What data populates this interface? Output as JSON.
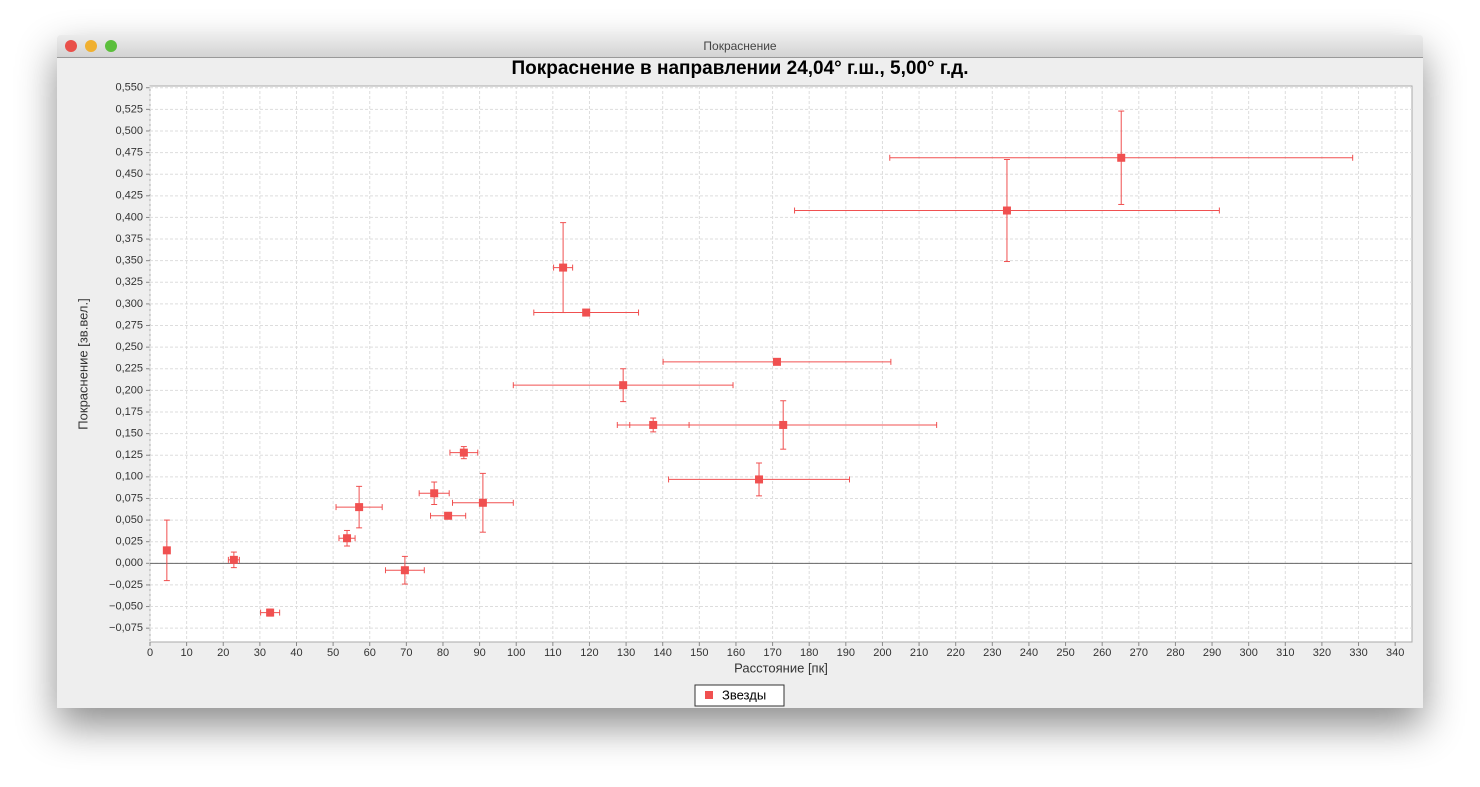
{
  "window_title": "Покраснение",
  "chart_data": {
    "type": "scatter",
    "title": "Покраснение в направлении 24,04° г.ш., 5,00° г.д.",
    "x_label": "Расстояние [пк]",
    "y_label": "Покраснение [зв.вел.]",
    "xlim": [
      0,
      344.6
    ],
    "ylim": [
      -0.091,
      0.552
    ],
    "grid": true,
    "xticks": [
      0,
      10,
      20,
      30,
      40,
      50,
      60,
      70,
      80,
      90,
      100,
      110,
      120,
      130,
      140,
      150,
      160,
      170,
      180,
      190,
      200,
      210,
      220,
      230,
      240,
      250,
      260,
      270,
      280,
      290,
      300,
      310,
      320,
      330,
      340
    ],
    "yticks": [
      {
        "value": -0.075,
        "label": "−0,075"
      },
      {
        "value": -0.05,
        "label": "−0,050"
      },
      {
        "value": -0.025,
        "label": "−0,025"
      },
      {
        "value": 0,
        "label": "0,000"
      },
      {
        "value": 0.025,
        "label": "0,025"
      },
      {
        "value": 0.05,
        "label": "0,050"
      },
      {
        "value": 0.075,
        "label": "0,075"
      },
      {
        "value": 0.1,
        "label": "0,100"
      },
      {
        "value": 0.125,
        "label": "0,125"
      },
      {
        "value": 0.15,
        "label": "0,150"
      },
      {
        "value": 0.175,
        "label": "0,175"
      },
      {
        "value": 0.2,
        "label": "0,200"
      },
      {
        "value": 0.225,
        "label": "0,225"
      },
      {
        "value": 0.25,
        "label": "0,250"
      },
      {
        "value": 0.275,
        "label": "0,275"
      },
      {
        "value": 0.3,
        "label": "0,300"
      },
      {
        "value": 0.325,
        "label": "0,325"
      },
      {
        "value": 0.35,
        "label": "0,350"
      },
      {
        "value": 0.375,
        "label": "0,375"
      },
      {
        "value": 0.4,
        "label": "0,400"
      },
      {
        "value": 0.425,
        "label": "0,425"
      },
      {
        "value": 0.45,
        "label": "0,450"
      },
      {
        "value": 0.475,
        "label": "0,475"
      },
      {
        "value": 0.5,
        "label": "0,500"
      },
      {
        "value": 0.525,
        "label": "0,525"
      },
      {
        "value": 0.55,
        "label": "0,550"
      }
    ],
    "series": [
      {
        "name": "Звезды",
        "color": "#f05050",
        "x": [
          4.6,
          22.9,
          32.8,
          53.8,
          57.1,
          69.6,
          77.6,
          81.4,
          85.7,
          90.9,
          112.8,
          119.1,
          129.2,
          137.4,
          166.3,
          171.2,
          172.9,
          234.0,
          265.2
        ],
        "values": [
          0.015,
          0.004,
          -0.057,
          0.029,
          0.065,
          -0.008,
          0.081,
          0.055,
          0.128,
          0.07,
          0.342,
          0.29,
          0.206,
          0.16,
          0.097,
          0.233,
          0.16,
          0.408,
          0.469
        ],
        "xerr": [
          0,
          1.5,
          2.6,
          2.2,
          6.3,
          5.3,
          4.1,
          4.8,
          3.8,
          8.3,
          2.6,
          14.3,
          30,
          9.8,
          24.7,
          31.1,
          41.9,
          58,
          63.2
        ],
        "yerr": [
          0.035,
          0.009,
          0.004,
          0.009,
          0.024,
          0.016,
          0.013,
          0,
          0.007,
          0.034,
          0.052,
          0,
          0.019,
          0.008,
          0.019,
          0,
          0.028,
          0.059,
          0.054
        ]
      }
    ]
  }
}
